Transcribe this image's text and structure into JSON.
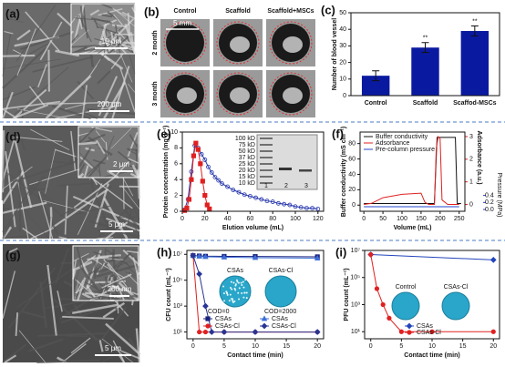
{
  "panels": {
    "a": {
      "label": "(a)",
      "inset_scale": "10 μm",
      "scale": "200 μm"
    },
    "b": {
      "label": "(b)",
      "columns": [
        "Control",
        "Scaffold",
        "Scaffold+MSCs"
      ],
      "rows": [
        "2 month",
        "3 month"
      ],
      "scale": "5 mm"
    },
    "d": {
      "label": "(d)",
      "inset_scale": "2 μm",
      "scale": "5 μm"
    },
    "g": {
      "label": "(g)",
      "inset_scale": "200 nm",
      "scale": "5 μm"
    }
  },
  "chart_data": [
    {
      "type": "bar",
      "label": "(c)",
      "ylabel": "Number of blood vessel",
      "categories": [
        "Control",
        "Scaffold",
        "Scaffod-MSCs"
      ],
      "values": [
        12,
        29,
        39
      ],
      "errors": [
        3,
        3,
        3
      ],
      "annotations": [
        null,
        "**",
        "**"
      ],
      "color": "#0a1aa0",
      "ylim": [
        0,
        50
      ],
      "yticks": [
        0,
        10,
        20,
        30,
        40,
        50
      ]
    },
    {
      "type": "line",
      "label": "(e)",
      "xlabel": "Elution volume (mL)",
      "ylabel": "Protein concentration (mg g⁻¹)",
      "xlim": [
        0,
        125
      ],
      "xticks": [
        0,
        20,
        40,
        60,
        80,
        100,
        120
      ],
      "ylim": [
        0,
        10
      ],
      "yticks": [
        0,
        2,
        4,
        6,
        8,
        10
      ],
      "series": [
        {
          "color": "#2233aa",
          "marker": "open-circle",
          "x": [
            2,
            5,
            8,
            11,
            14,
            17,
            20,
            23,
            26,
            29,
            32,
            35,
            40,
            45,
            50,
            55,
            60,
            65,
            70,
            75,
            80,
            85,
            90,
            95,
            100,
            105,
            110,
            115,
            120
          ],
          "values": [
            0.2,
            1.5,
            5,
            8.3,
            8.0,
            7.2,
            6.5,
            5.6,
            4.9,
            4.3,
            3.9,
            3.5,
            3.1,
            2.7,
            2.4,
            2.1,
            1.9,
            1.7,
            1.5,
            1.3,
            1.2,
            1.0,
            0.9,
            0.8,
            0.6,
            0.5,
            0.4,
            0.4,
            0.3
          ]
        },
        {
          "color": "#e02020",
          "marker": "square",
          "x": [
            2,
            4,
            6,
            8,
            10,
            12,
            14,
            16,
            18,
            20,
            22,
            24
          ],
          "values": [
            0.1,
            0.4,
            1.5,
            4,
            7,
            8.6,
            7.8,
            6,
            3.8,
            2,
            0.8,
            0.3
          ]
        }
      ],
      "inset": {
        "markers": [
          "100 kD",
          "75 kD",
          "50 kD",
          "37 kD",
          "25 kD",
          "20 kD",
          "15 kD",
          "10 kD"
        ],
        "lanes": [
          "1",
          "2",
          "3"
        ]
      }
    },
    {
      "type": "line",
      "label": "(f)",
      "xlabel": "Volume (mL)",
      "ylabel": "Buffer conductivity (mS cm⁻¹)",
      "y2label": "Adsorbance (a.u.)",
      "y3label": "Pressure (MPa)",
      "legend": "upper left",
      "xlim": [
        -10,
        265
      ],
      "xticks": [
        0,
        50,
        100,
        150,
        200,
        250
      ],
      "ylim": [
        -8,
        95
      ],
      "yticks": [
        0,
        20,
        40,
        60,
        80
      ],
      "y2lim": [
        -0.3,
        3.2
      ],
      "y2ticks": [
        0,
        1,
        2,
        3
      ],
      "y3lim": [
        -0.05,
        2.2
      ],
      "y3ticks": [
        {
          "value": 0,
          "label": "0.0"
        },
        {
          "value": 0.2,
          "label": "0.2"
        },
        {
          "value": 0.4,
          "label": "0.4"
        }
      ],
      "series": [
        {
          "name": "Buffer conductivity",
          "color": "#111111",
          "x": [
            0,
            50,
            100,
            185,
            192,
            200,
            240,
            245,
            255
          ],
          "values": [
            2,
            2,
            2,
            2,
            88,
            88,
            88,
            2,
            2
          ]
        },
        {
          "name": "Adsorbance",
          "color": "#e02020",
          "axis": "y2",
          "x": [
            0,
            20,
            50,
            100,
            150,
            160,
            170,
            185,
            190,
            195,
            200,
            205,
            220,
            250
          ],
          "values": [
            0,
            0.05,
            0.3,
            0.45,
            0.5,
            0.1,
            0,
            0,
            2.5,
            3,
            2.9,
            0.2,
            0,
            0
          ]
        },
        {
          "name": "Pre-column pressure",
          "color": "#2244cc",
          "axis": "y3",
          "x": [
            0,
            50,
            100,
            150,
            200,
            250
          ],
          "values": [
            0.08,
            0.08,
            0.08,
            0.08,
            0.08,
            0.08
          ]
        }
      ]
    },
    {
      "type": "line",
      "label": "(h)",
      "xlabel": "Contact time (min)",
      "ylabel": "CFU count (mL⁻¹)",
      "log": true,
      "legend": "lower left",
      "xlim": [
        -1,
        21
      ],
      "xticks": [
        0,
        5,
        10,
        15,
        20
      ],
      "ylim": [
        3,
        20000000
      ],
      "yticks": [
        {
          "value": 10,
          "label": "10¹"
        },
        {
          "value": 1000,
          "label": "10³"
        },
        {
          "value": 100000,
          "label": "10⁵"
        },
        {
          "value": 10000000,
          "label": "10⁷"
        }
      ],
      "groups": [
        {
          "title": "COD=0",
          "series": [
            {
              "name": "CSAs",
              "color": "#1a237e",
              "marker": "square",
              "x": [
                0,
                1,
                2,
                5,
                10,
                20
              ],
              "values": [
                8000000,
                7500000,
                7200000,
                7000000,
                6800000,
                6500000
              ]
            },
            {
              "name": "CSAs-Cl",
              "color": "#e02020",
              "marker": "circle",
              "x": [
                0,
                1,
                2,
                5,
                10,
                20
              ],
              "values": [
                8000000,
                10,
                10,
                10,
                10,
                10
              ]
            }
          ]
        },
        {
          "title": "COD=2000",
          "series": [
            {
              "name": "CSAs",
              "color": "#3f6fd8",
              "marker": "triangle",
              "x": [
                0,
                1,
                2,
                5,
                10,
                20
              ],
              "values": [
                8000000,
                7000000,
                6500000,
                6000000,
                5500000,
                5000000
              ]
            },
            {
              "name": "CSAs-Cl",
              "color": "#283593",
              "marker": "diamond",
              "x": [
                0,
                1,
                2,
                3,
                5,
                10,
                20
              ],
              "values": [
                8000000,
                300000,
                1000,
                10,
                10,
                10,
                10
              ]
            }
          ]
        }
      ],
      "image_labels": [
        "CSAs",
        "CSAs-Cl"
      ]
    },
    {
      "type": "line",
      "label": "(i)",
      "xlabel": "Contact time (min)",
      "ylabel": "PFU count (mL⁻¹)",
      "log": true,
      "legend": "lower center",
      "xlim": [
        -1,
        21
      ],
      "xticks": [
        0,
        5,
        10,
        15,
        20
      ],
      "ylim": [
        3,
        10000000
      ],
      "yticks": [
        {
          "value": 10,
          "label": "10¹"
        },
        {
          "value": 1000,
          "label": "10³"
        },
        {
          "value": 100000,
          "label": "10⁵"
        },
        {
          "value": 10000000,
          "label": "10⁷"
        }
      ],
      "series": [
        {
          "name": "CSAs",
          "color": "#2244bb",
          "marker": "diamond",
          "x": [
            0,
            20
          ],
          "values": [
            5000000,
            2000000
          ]
        },
        {
          "name": "CSAs-Cl",
          "color": "#e02020",
          "marker": "circle",
          "x": [
            0,
            1,
            2,
            3,
            5,
            10,
            20
          ],
          "values": [
            5000000,
            15000,
            1000,
            100,
            10,
            10,
            10
          ]
        }
      ],
      "image_labels": [
        "Control",
        "CSAs-Cl"
      ]
    }
  ]
}
